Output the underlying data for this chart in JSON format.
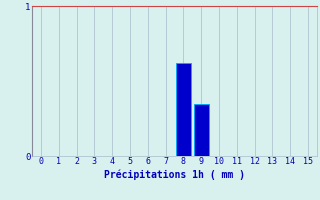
{
  "categories": [
    0,
    1,
    2,
    3,
    4,
    5,
    6,
    7,
    8,
    9,
    10,
    11,
    12,
    13,
    14,
    15
  ],
  "values": [
    0,
    0,
    0,
    0,
    0,
    0,
    0,
    0,
    0.62,
    0.35,
    0,
    0,
    0,
    0,
    0,
    0
  ],
  "bar_color": "#0000cc",
  "bar_edge_color": "#00aaff",
  "background_color": "#d8f0ee",
  "grid_color": "#aabbcc",
  "top_line_color": "#cc4444",
  "xlabel": "Précipitations 1h ( mm )",
  "xlabel_color": "#0000bb",
  "tick_color": "#0000bb",
  "ylabel_ticks": [
    0,
    1
  ],
  "xlim": [
    -0.5,
    15.5
  ],
  "ylim": [
    0,
    1.0
  ],
  "bar_width": 0.85,
  "figsize": [
    3.2,
    2.0
  ],
  "dpi": 100
}
